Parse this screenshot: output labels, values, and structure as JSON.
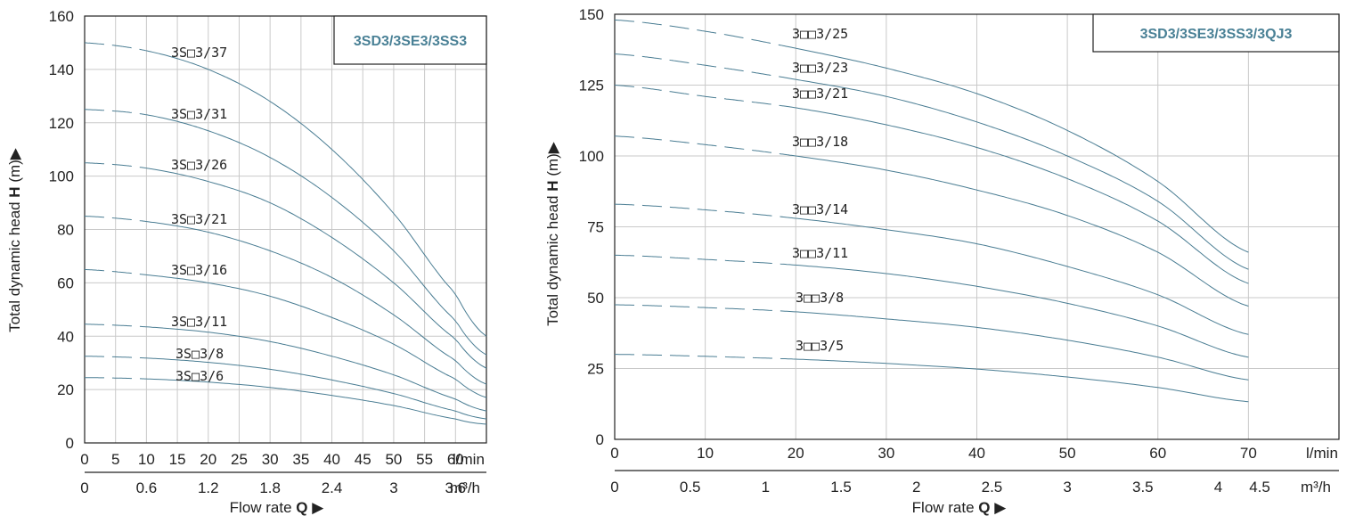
{
  "chart_data": [
    {
      "type": "line",
      "legend": "3SD3/3SE3/3SS3",
      "ylabel_prefix": "Total dynamic head ",
      "ylabel_bold": "H",
      "ylabel_suffix": " (m)",
      "xlabel_prefix": "Flow rate ",
      "xlabel_bold": "Q",
      "x_unit_primary": "l/min",
      "x_unit_secondary": "m³/h",
      "x_ticks_primary": [
        "0",
        "5",
        "10",
        "15",
        "20",
        "25",
        "30",
        "35",
        "40",
        "45",
        "50",
        "55",
        "60"
      ],
      "x_ticks_secondary": [
        "0",
        "0.6",
        "1.2",
        "1.8",
        "2.4",
        "3",
        "3.6"
      ],
      "y_ticks": [
        "0",
        "20",
        "40",
        "60",
        "80",
        "100",
        "120",
        "140",
        "160"
      ],
      "xlim": [
        0,
        65
      ],
      "ylim": [
        0,
        160
      ],
      "dashed_until": 10,
      "series": [
        {
          "name": "3S□3/37",
          "x": [
            0,
            10,
            20,
            30,
            40,
            50,
            60,
            65
          ],
          "y": [
            150,
            147,
            140,
            128,
            110,
            86,
            56,
            40
          ]
        },
        {
          "name": "3S□3/31",
          "x": [
            0,
            10,
            20,
            30,
            40,
            50,
            60,
            65
          ],
          "y": [
            125,
            123,
            117,
            107,
            92,
            72,
            46,
            33
          ]
        },
        {
          "name": "3S□3/26",
          "x": [
            0,
            10,
            20,
            30,
            40,
            50,
            60,
            65
          ],
          "y": [
            105,
            103,
            98,
            90,
            77,
            60,
            39,
            28
          ]
        },
        {
          "name": "3S□3/21",
          "x": [
            0,
            10,
            20,
            30,
            40,
            50,
            60,
            65
          ],
          "y": [
            85,
            83,
            79,
            72,
            62,
            48,
            31,
            22
          ]
        },
        {
          "name": "3S□3/16",
          "x": [
            0,
            10,
            20,
            30,
            40,
            50,
            60,
            65
          ],
          "y": [
            65,
            63,
            60,
            55,
            47,
            37,
            24,
            17
          ]
        },
        {
          "name": "3S□3/11",
          "x": [
            0,
            10,
            20,
            30,
            40,
            50,
            60,
            65
          ],
          "y": [
            44.5,
            43.5,
            41.5,
            38,
            32.5,
            25.5,
            16.5,
            12
          ]
        },
        {
          "name": "3S□3/8",
          "x": [
            0,
            10,
            20,
            30,
            40,
            50,
            60,
            65
          ],
          "y": [
            32.5,
            31.8,
            30.2,
            27.6,
            23.6,
            18.5,
            12,
            9
          ]
        },
        {
          "name": "3S□3/6",
          "x": [
            0,
            10,
            20,
            30,
            40,
            50,
            60,
            65
          ],
          "y": [
            24.5,
            24,
            22.8,
            20.8,
            17.8,
            14,
            9,
            7
          ]
        }
      ]
    },
    {
      "type": "line",
      "legend": "3SD3/3SE3/3SS3/3QJ3",
      "ylabel_prefix": "Total dynamic head ",
      "ylabel_bold": "H",
      "ylabel_suffix": " (m)",
      "xlabel_prefix": "Flow rate ",
      "xlabel_bold": "Q",
      "x_unit_primary": "l/min",
      "x_unit_secondary": "m³/h",
      "x_ticks_primary": [
        "0",
        "10",
        "20",
        "30",
        "40",
        "50",
        "60",
        "70"
      ],
      "x_ticks_secondary": [
        "0",
        "0.5",
        "1",
        "1.5",
        "2",
        "2.5",
        "3",
        "3.5",
        "4",
        "4.5"
      ],
      "y_ticks": [
        "0",
        "25",
        "50",
        "75",
        "100",
        "125",
        "150"
      ],
      "xlim": [
        0,
        80
      ],
      "ylim": [
        0,
        150
      ],
      "dashed_until": 20,
      "series": [
        {
          "name": "3□□3/25",
          "x": [
            0,
            10,
            20,
            30,
            40,
            50,
            60,
            70
          ],
          "y": [
            148,
            144,
            138,
            131,
            122,
            109,
            91,
            66
          ]
        },
        {
          "name": "3□□3/23",
          "x": [
            0,
            10,
            20,
            30,
            40,
            50,
            60,
            70
          ],
          "y": [
            136,
            132,
            127,
            121,
            112,
            100,
            84,
            60
          ]
        },
        {
          "name": "3□□3/21",
          "x": [
            0,
            10,
            20,
            30,
            40,
            50,
            60,
            70
          ],
          "y": [
            125,
            121,
            117,
            111,
            103,
            92,
            77,
            55
          ]
        },
        {
          "name": "3□□3/18",
          "x": [
            0,
            10,
            20,
            30,
            40,
            50,
            60,
            70
          ],
          "y": [
            107,
            104,
            100,
            95,
            88,
            79,
            66,
            47
          ]
        },
        {
          "name": "3□□3/14",
          "x": [
            0,
            10,
            20,
            30,
            40,
            50,
            60,
            70
          ],
          "y": [
            83,
            81,
            78,
            74,
            69,
            61,
            51,
            37
          ]
        },
        {
          "name": "3□□3/11",
          "x": [
            0,
            10,
            20,
            30,
            40,
            50,
            60,
            70
          ],
          "y": [
            65,
            63.5,
            61.5,
            58.5,
            54,
            48,
            40,
            29
          ]
        },
        {
          "name": "3□□3/8",
          "x": [
            0,
            10,
            20,
            30,
            40,
            50,
            60,
            70
          ],
          "y": [
            47.5,
            46.5,
            45,
            42.5,
            39.5,
            35,
            29,
            21
          ]
        },
        {
          "name": "3□□3/5",
          "x": [
            0,
            10,
            20,
            30,
            40,
            50,
            60,
            70
          ],
          "y": [
            30,
            29.3,
            28.3,
            26.8,
            24.8,
            22,
            18.3,
            13.3
          ]
        }
      ]
    }
  ],
  "colors": {
    "curve": "#4a7d93",
    "grid": "#c9c9c9",
    "axis": "#222222",
    "legend_text": "#4a8196"
  }
}
